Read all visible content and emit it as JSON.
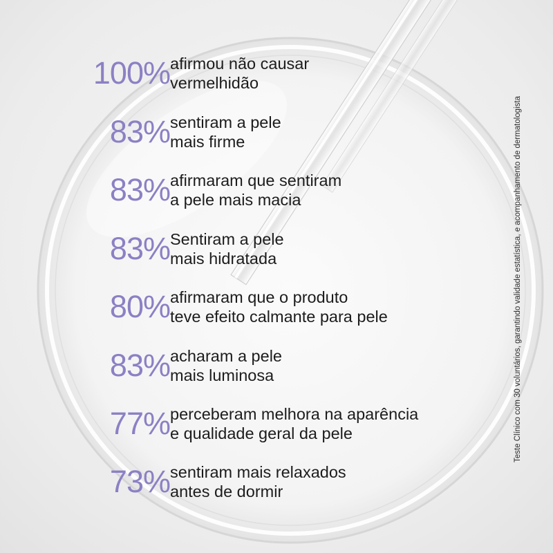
{
  "stats": [
    {
      "percent": "100%",
      "line1": "afirmou não causar",
      "line2": "vermelhidão"
    },
    {
      "percent": "83%",
      "line1": "sentiram a pele",
      "line2": "mais firme"
    },
    {
      "percent": "83%",
      "line1": "afirmaram que sentiram",
      "line2": "a pele mais macia"
    },
    {
      "percent": "83%",
      "line1": "Sentiram a pele",
      "line2": "mais hidratada"
    },
    {
      "percent": "80%",
      "line1": "afirmaram que o produto",
      "line2": "teve efeito calmante para pele"
    },
    {
      "percent": "83%",
      "line1": "acharam a pele",
      "line2": "mais luminosa"
    },
    {
      "percent": "77%",
      "line1": "perceberam melhora na aparência",
      "line2": "e qualidade geral da pele"
    },
    {
      "percent": "73%",
      "line1": "sentiram mais relaxados",
      "line2": "antes de dormir"
    }
  ],
  "footnote": "Teste Clínico com 30 voluntários, garantindo validade estatística, e acompanhamento de dermatologista",
  "colors": {
    "percent": "#8c80c4",
    "text": "#1c1c1c",
    "background": "#ececec"
  }
}
